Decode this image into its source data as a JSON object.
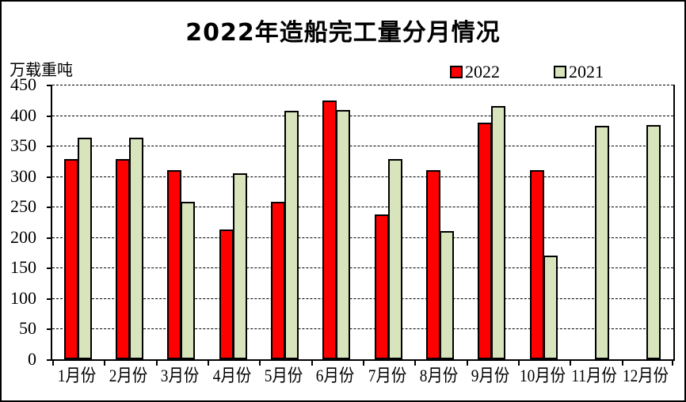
{
  "chart_data": {
    "type": "bar",
    "title": "2022年造船完工量分月情况",
    "ylabel": "万载重吨",
    "xlabel": "",
    "categories": [
      "1月份",
      "2月份",
      "3月份",
      "4月份",
      "5月份",
      "6月份",
      "7月份",
      "8月份",
      "9月份",
      "10月份",
      "11月份",
      "12月份"
    ],
    "series": [
      {
        "name": "2022",
        "color": "#FF0000",
        "values": [
          325,
          326,
          308,
          210,
          256,
          421,
          235,
          308,
          385,
          307,
          null,
          null
        ]
      },
      {
        "name": "2021",
        "color": "#D8E4BC",
        "values": [
          361,
          361,
          256,
          302,
          404,
          406,
          326,
          208,
          413,
          167,
          380,
          381
        ]
      }
    ],
    "ylim": [
      0,
      450
    ],
    "ytick_step": 50,
    "ytick_labels": [
      "450",
      "400",
      "350",
      "300",
      "250",
      "200",
      "150",
      "100",
      "50",
      "0"
    ],
    "grid": "horizontal-dashed",
    "legend_position": "top-right",
    "bar_border_color": "#000000",
    "background_color": "#FFFFFF"
  }
}
